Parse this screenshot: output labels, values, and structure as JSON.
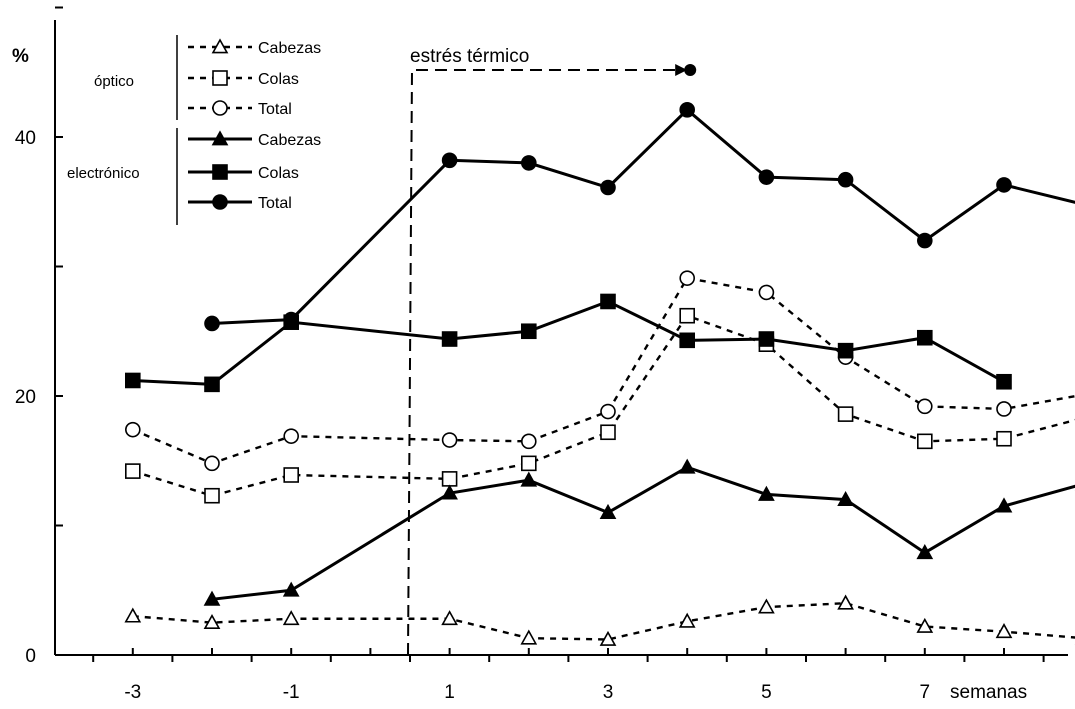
{
  "chart_data": {
    "type": "line",
    "ylabel": "%",
    "xlabel": "semanas",
    "xlim": [
      -4,
      9.5
    ],
    "ylim": [
      0,
      50
    ],
    "x_ticks": [
      -3,
      -1,
      1,
      3,
      5,
      7
    ],
    "y_ticks": [
      0,
      20,
      40
    ],
    "annotation": {
      "text": "estrés térmico",
      "x_start": 0.5,
      "x_end": 4
    },
    "legend_groups": [
      {
        "label": "óptico",
        "series": [
          "optico-cabezas",
          "optico-colas",
          "optico-total"
        ]
      },
      {
        "label": "electrónico",
        "series": [
          "electronico-cabezas",
          "electronico-colas",
          "electronico-total"
        ]
      }
    ],
    "series": [
      {
        "id": "optico-cabezas",
        "name": "Cabezas",
        "group": "óptico",
        "marker": "triangle-open",
        "line": "dashed",
        "x": [
          -3,
          -2,
          -1,
          1,
          2,
          3,
          4,
          5,
          6,
          7,
          8,
          9
        ],
        "y": [
          3.0,
          2.5,
          2.8,
          2.8,
          1.3,
          1.2,
          2.6,
          3.7,
          4.0,
          2.2,
          1.8,
          1.3
        ]
      },
      {
        "id": "optico-colas",
        "name": "Colas",
        "group": "óptico",
        "marker": "square-open",
        "line": "dashed",
        "x": [
          -3,
          -2,
          -1,
          1,
          2,
          3,
          4,
          5,
          6,
          7,
          8,
          9
        ],
        "y": [
          14.2,
          12.3,
          13.9,
          13.6,
          14.8,
          17.2,
          26.2,
          24.0,
          18.6,
          16.5,
          16.7,
          18.3
        ]
      },
      {
        "id": "optico-total",
        "name": "Total",
        "group": "óptico",
        "marker": "circle-open",
        "line": "dashed",
        "x": [
          -3,
          -2,
          -1,
          1,
          2,
          3,
          4,
          5,
          6,
          7,
          8,
          9
        ],
        "y": [
          17.4,
          14.8,
          16.9,
          16.6,
          16.5,
          18.8,
          29.1,
          28.0,
          23.0,
          19.2,
          19.0,
          20.1
        ]
      },
      {
        "id": "electronico-cabezas",
        "name": "Cabezas",
        "group": "electrónico",
        "marker": "triangle-filled",
        "line": "solid",
        "x": [
          -2,
          -1,
          1,
          2,
          3,
          4,
          5,
          6,
          7,
          8,
          9
        ],
        "y": [
          4.3,
          5.0,
          12.5,
          13.5,
          11.0,
          14.5,
          12.4,
          12.0,
          7.9,
          11.5,
          13.2
        ]
      },
      {
        "id": "electronico-colas",
        "name": "Colas",
        "group": "électronico",
        "marker": "square-filled",
        "line": "solid",
        "x": [
          -3,
          -2,
          -1,
          1,
          2,
          3,
          4,
          5,
          6,
          7,
          8
        ],
        "y": [
          21.2,
          20.9,
          25.7,
          24.4,
          25.0,
          27.3,
          24.3,
          24.4,
          23.5,
          24.5,
          21.1
        ]
      },
      {
        "id": "electronico-total",
        "name": "Total",
        "group": "electrónico",
        "marker": "circle-filled",
        "line": "solid",
        "x": [
          -2,
          -1,
          1,
          2,
          3,
          4,
          5,
          6,
          7,
          8,
          9
        ],
        "y": [
          25.6,
          25.9,
          38.2,
          38.0,
          36.1,
          42.1,
          36.9,
          36.7,
          32.0,
          36.3,
          34.8
        ]
      }
    ]
  }
}
